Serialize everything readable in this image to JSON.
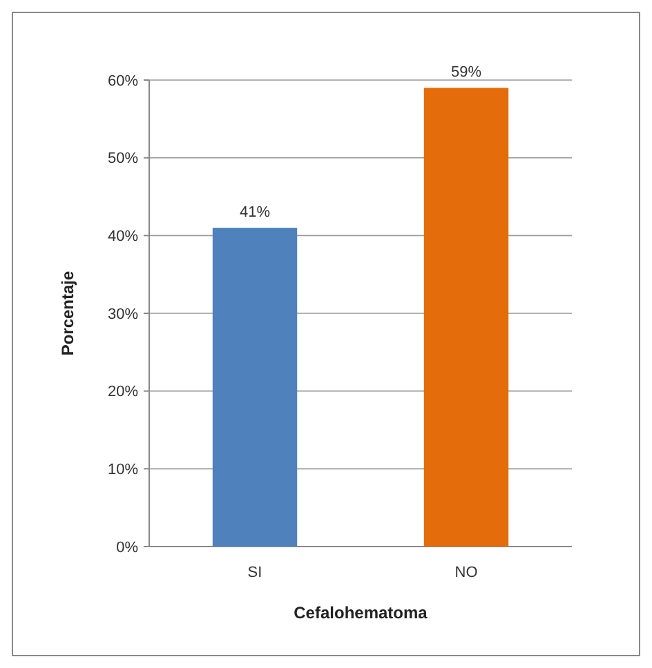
{
  "chart_data": {
    "type": "bar",
    "xlabel": "Cefalohematoma",
    "ylabel": "Porcentaje",
    "categories": [
      "SI",
      "NO"
    ],
    "values": [
      41,
      59
    ],
    "colors": [
      "#4f81bd",
      "#e46c0a"
    ],
    "value_labels": [
      "41%",
      "59%"
    ],
    "ylim": [
      0,
      60
    ],
    "yticks": [
      {
        "value": 0,
        "label": "0%"
      },
      {
        "value": 10,
        "label": "10%"
      },
      {
        "value": 20,
        "label": "20%"
      },
      {
        "value": 30,
        "label": "30%"
      },
      {
        "value": 40,
        "label": "40%"
      },
      {
        "value": 50,
        "label": "50%"
      },
      {
        "value": 60,
        "label": "60%"
      }
    ],
    "grid": "y"
  }
}
